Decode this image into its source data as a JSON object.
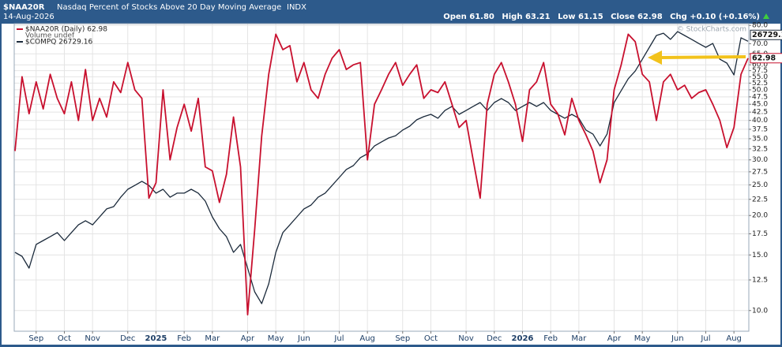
{
  "header": {
    "symbol": "$NAA20R",
    "title": "Nasdaq Percent of Stocks Above 20 Day Moving Average",
    "exchange": "INDX",
    "date": "14-Aug-2026",
    "quote": [
      "Open",
      "61.80",
      "High",
      "63.21",
      "Low",
      "61.15",
      "Close",
      "62.98",
      "Chg",
      "+0.10 (+0.16%)"
    ],
    "watermark": "© StockCharts.com"
  },
  "chart_data": {
    "type": "line",
    "log_y": true,
    "grid": true,
    "legend": "top-left",
    "legend_extra": "Volume undef",
    "categories": [
      null,
      null,
      null,
      "Sep",
      null,
      null,
      null,
      "Oct",
      null,
      null,
      null,
      "Nov",
      null,
      null,
      null,
      null,
      "Dec",
      null,
      null,
      null,
      "2025",
      null,
      null,
      null,
      "Feb",
      null,
      null,
      null,
      "Mar",
      null,
      null,
      null,
      null,
      "Apr",
      null,
      null,
      null,
      "May",
      null,
      null,
      null,
      "Jun",
      null,
      null,
      null,
      null,
      "Jul",
      null,
      null,
      null,
      "Aug",
      null,
      null,
      null,
      null,
      "Sep",
      null,
      null,
      null,
      "Oct",
      null,
      null,
      null,
      null,
      "Nov",
      null,
      null,
      null,
      "Dec",
      null,
      null,
      null,
      "2026",
      null,
      null,
      null,
      "Feb",
      null,
      null,
      null,
      "Mar",
      null,
      null,
      null,
      null,
      "Apr",
      null,
      null,
      null,
      "May",
      null,
      null,
      null,
      null,
      "Jun",
      null,
      null,
      null,
      "Jul",
      null,
      null,
      null,
      "Aug",
      null,
      null
    ],
    "ylim": [
      8.6,
      81
    ],
    "yticks": [
      {
        "value": 10,
        "label": "10.0"
      },
      {
        "value": 12.5,
        "label": "12.5"
      },
      {
        "value": 15,
        "label": "15.0"
      },
      {
        "value": 17.5,
        "label": "17.5"
      },
      {
        "value": 20,
        "label": "20.0"
      },
      {
        "value": 22.5,
        "label": "22.5"
      },
      {
        "value": 25,
        "label": "25.0"
      },
      {
        "value": 27.5,
        "label": "27.5"
      },
      {
        "value": 30,
        "label": "30.0"
      },
      {
        "value": 32.5,
        "label": "32.5"
      },
      {
        "value": 35,
        "label": "35.0"
      },
      {
        "value": 37.5,
        "label": "37.5"
      },
      {
        "value": 40,
        "label": "40.0"
      },
      {
        "value": 42.5,
        "label": "42.5"
      },
      {
        "value": 45,
        "label": "45.0"
      },
      {
        "value": 47.5,
        "label": "47.5"
      },
      {
        "value": 50,
        "label": "50.0"
      },
      {
        "value": 52.5,
        "label": "52.5"
      },
      {
        "value": 55,
        "label": "55.0"
      },
      {
        "value": 57.5,
        "label": "57.5"
      },
      {
        "value": 60,
        "label": "60.0"
      },
      {
        "value": 65,
        "label": "65.0"
      },
      {
        "value": 70,
        "label": "70.0"
      },
      {
        "value": 80,
        "label": "80.0"
      }
    ],
    "y2lim": [
      14000,
      27500
    ],
    "series": [
      {
        "name": "$COMPQ 26729.16",
        "color": "#1b2a3b",
        "axis": "y2",
        "last_label": "26729.16",
        "values": [
          17460,
          17290,
          16770,
          17810,
          17980,
          18150,
          18330,
          17980,
          18330,
          18670,
          18850,
          18670,
          19020,
          19370,
          19470,
          19880,
          20230,
          20400,
          20580,
          20400,
          20060,
          20230,
          19880,
          20060,
          20060,
          20230,
          20060,
          19710,
          19020,
          18500,
          18150,
          17460,
          17810,
          16770,
          15730,
          15210,
          16080,
          17460,
          18330,
          18670,
          19020,
          19370,
          19540,
          19880,
          20060,
          20400,
          20750,
          21100,
          21270,
          21620,
          21790,
          22130,
          22310,
          22480,
          22580,
          22830,
          23000,
          23280,
          23420,
          23520,
          23350,
          23690,
          23870,
          23520,
          23690,
          23870,
          24040,
          23690,
          24040,
          24210,
          24040,
          23690,
          23870,
          24040,
          23870,
          24040,
          23690,
          23520,
          23350,
          23520,
          23350,
          22830,
          22650,
          22130,
          22650,
          24040,
          24560,
          25080,
          25420,
          25940,
          26460,
          26980,
          27080,
          26810,
          27150,
          26980,
          26810,
          26630,
          26460,
          26630,
          25940,
          25770,
          25250,
          26880,
          26729.16
        ]
      },
      {
        "name": "$NAA20R (Daily) 62.98",
        "color": "#c8102e",
        "last_label": "62.98",
        "values": [
          32,
          55,
          42,
          53,
          43.5,
          56,
          47,
          42,
          53,
          40,
          58,
          40,
          47,
          41,
          53,
          49,
          61,
          50,
          47,
          22.7,
          25.4,
          50,
          30,
          38,
          45,
          37,
          47,
          28.5,
          27.7,
          22,
          27,
          41,
          28.5,
          9.7,
          18,
          35.7,
          56,
          75,
          67,
          69,
          53,
          61,
          50,
          47,
          56,
          63,
          67,
          58,
          60,
          61,
          30,
          45,
          50,
          56,
          61,
          51.7,
          56,
          60,
          47,
          50,
          49,
          53,
          45,
          38,
          40,
          30,
          22.7,
          45,
          56,
          61,
          53,
          45,
          34.3,
          50,
          53,
          61,
          45,
          42,
          36,
          47,
          40,
          36,
          32,
          25.4,
          30,
          50,
          60,
          75,
          71,
          56,
          53,
          40,
          53,
          56,
          50,
          51.7,
          47,
          49,
          50,
          45,
          40,
          32.8,
          38,
          56,
          62.98
        ]
      }
    ]
  }
}
